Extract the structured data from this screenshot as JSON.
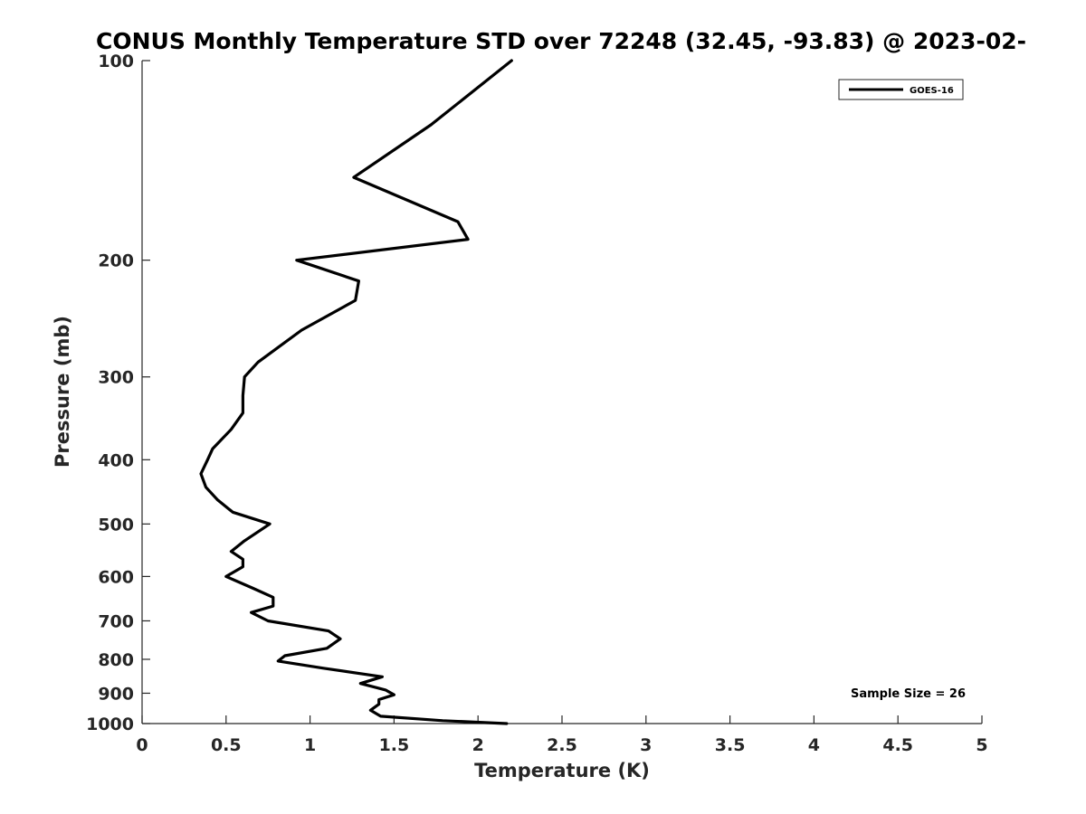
{
  "chart_data": {
    "type": "line",
    "title": "CONUS Monthly Temperature STD over 72248 (32.45, -93.83) @ 2023-02-",
    "xlabel": "Temperature (K)",
    "ylabel": "Pressure (mb)",
    "xlim": [
      0,
      5
    ],
    "ylim": [
      1000,
      100
    ],
    "yscale": "log",
    "y_reversed": true,
    "xticks": [
      0,
      0.5,
      1,
      1.5,
      2,
      2.5,
      3,
      3.5,
      4,
      4.5,
      5
    ],
    "xtick_labels": [
      "0",
      "0.5",
      "1",
      "1.5",
      "2",
      "2.5",
      "3",
      "3.5",
      "4",
      "4.5",
      "5"
    ],
    "yticks": [
      100,
      200,
      300,
      400,
      500,
      600,
      700,
      800,
      900,
      1000
    ],
    "ytick_labels": [
      "100",
      "200",
      "300",
      "400",
      "500",
      "600",
      "700",
      "800",
      "900",
      "1000"
    ],
    "grid": false,
    "legend_position": "top-right",
    "annotation": "Sample Size = 26",
    "series": [
      {
        "name": "GOES-16",
        "color": "#000000",
        "points": [
          [
            2.2,
            100
          ],
          [
            1.72,
            125
          ],
          [
            1.26,
            150
          ],
          [
            1.88,
            175
          ],
          [
            1.94,
            186
          ],
          [
            0.92,
            200
          ],
          [
            1.29,
            215
          ],
          [
            1.27,
            230
          ],
          [
            0.95,
            255
          ],
          [
            0.69,
            285
          ],
          [
            0.61,
            300
          ],
          [
            0.6,
            320
          ],
          [
            0.6,
            340
          ],
          [
            0.53,
            360
          ],
          [
            0.42,
            385
          ],
          [
            0.39,
            400
          ],
          [
            0.35,
            420
          ],
          [
            0.38,
            440
          ],
          [
            0.45,
            460
          ],
          [
            0.54,
            480
          ],
          [
            0.76,
            500
          ],
          [
            0.61,
            530
          ],
          [
            0.53,
            550
          ],
          [
            0.6,
            565
          ],
          [
            0.6,
            580
          ],
          [
            0.5,
            600
          ],
          [
            0.66,
            625
          ],
          [
            0.78,
            645
          ],
          [
            0.78,
            665
          ],
          [
            0.65,
            680
          ],
          [
            0.75,
            700
          ],
          [
            1.11,
            725
          ],
          [
            1.18,
            745
          ],
          [
            1.1,
            770
          ],
          [
            0.85,
            790
          ],
          [
            0.81,
            805
          ],
          [
            1.08,
            825
          ],
          [
            1.43,
            850
          ],
          [
            1.3,
            870
          ],
          [
            1.45,
            890
          ],
          [
            1.5,
            905
          ],
          [
            1.41,
            920
          ],
          [
            1.41,
            935
          ],
          [
            1.36,
            955
          ],
          [
            1.42,
            975
          ],
          [
            1.79,
            990
          ],
          [
            2.17,
            1000
          ]
        ]
      }
    ]
  }
}
